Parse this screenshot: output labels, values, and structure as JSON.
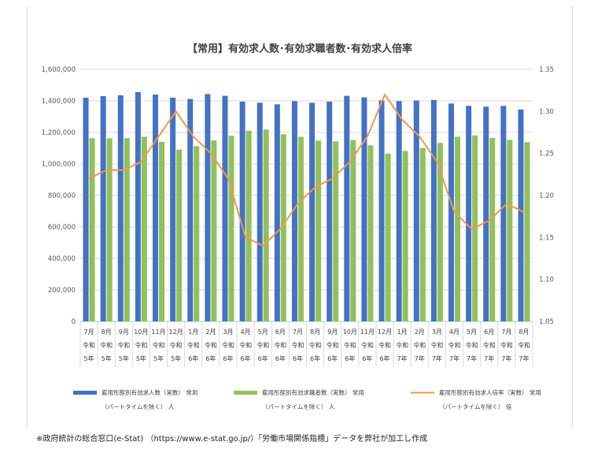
{
  "chart_data": {
    "type": "bar+line",
    "title": "【常用】有効求人数･有効求職者数･有効求人倍率",
    "categories": [
      [
        "7月",
        "令和",
        "5年"
      ],
      [
        "8月",
        "令和",
        "5年"
      ],
      [
        "9月",
        "令和",
        "5年"
      ],
      [
        "10月",
        "令和",
        "5年"
      ],
      [
        "11月",
        "令和",
        "5年"
      ],
      [
        "12月",
        "令和",
        "5年"
      ],
      [
        "1月",
        "令和",
        "6年"
      ],
      [
        "2月",
        "令和",
        "6年"
      ],
      [
        "3月",
        "令和",
        "6年"
      ],
      [
        "4月",
        "令和",
        "6年"
      ],
      [
        "5月",
        "令和",
        "6年"
      ],
      [
        "6月",
        "令和",
        "6年"
      ],
      [
        "7月",
        "令和",
        "6年"
      ],
      [
        "8月",
        "令和",
        "6年"
      ],
      [
        "9月",
        "令和",
        "6年"
      ],
      [
        "10月",
        "令和",
        "6年"
      ],
      [
        "11月",
        "令和",
        "6年"
      ],
      [
        "12月",
        "令和",
        "6年"
      ],
      [
        "1月",
        "令和",
        "7年"
      ],
      [
        "2月",
        "令和",
        "7年"
      ],
      [
        "3月",
        "令和",
        "7年"
      ],
      [
        "4月",
        "令和",
        "7年"
      ],
      [
        "5月",
        "令和",
        "7年"
      ],
      [
        "6月",
        "令和",
        "7年"
      ],
      [
        "7月",
        "令和",
        "7年"
      ],
      [
        "8月",
        "令和",
        "7年"
      ]
    ],
    "y_left": {
      "ylim": [
        0,
        1600000
      ],
      "ticks": [
        "0",
        "200,000",
        "400,000",
        "600,000",
        "800,000",
        "1,000,000",
        "1,200,000",
        "1,400,000",
        "1,600,000"
      ]
    },
    "y_right": {
      "ylim": [
        1.05,
        1.35
      ],
      "ticks": [
        "1.05",
        "1.10",
        "1.15",
        "1.20",
        "1.25",
        "1.30",
        "1.35"
      ]
    },
    "series": [
      {
        "name_lines": [
          "雇用形態別有効求人数（実数） 常用",
          "（パートタイムを除く） 人"
        ],
        "kind": "bar",
        "axis": "left",
        "color": "#4472c4",
        "values": [
          1420000,
          1430000,
          1435000,
          1455000,
          1440000,
          1420000,
          1412000,
          1443000,
          1432000,
          1395000,
          1388000,
          1378000,
          1398000,
          1388000,
          1395000,
          1432000,
          1422000,
          1403000,
          1398000,
          1402000,
          1405000,
          1383000,
          1368000,
          1363000,
          1368000,
          1345000
        ]
      },
      {
        "name_lines": [
          "雇用形態別有効求職者数（実数） 常用",
          "（パートタイムを除く） 人"
        ],
        "kind": "bar",
        "axis": "left",
        "color": "#92c05a",
        "values": [
          1163000,
          1163000,
          1163000,
          1172000,
          1140000,
          1090000,
          1113000,
          1148000,
          1178000,
          1210000,
          1218000,
          1188000,
          1172000,
          1148000,
          1143000,
          1152000,
          1118000,
          1065000,
          1082000,
          1100000,
          1133000,
          1172000,
          1180000,
          1165000,
          1152000,
          1138000
        ]
      },
      {
        "name_lines": [
          "雇用形態別有効求人倍率（実数） 常用",
          "（パートタイムを除く） 倍"
        ],
        "kind": "line",
        "axis": "right",
        "color": "#ed9b4a",
        "values": [
          1.22,
          1.23,
          1.23,
          1.24,
          1.27,
          1.3,
          1.27,
          1.25,
          1.22,
          1.15,
          1.14,
          1.16,
          1.19,
          1.21,
          1.22,
          1.24,
          1.27,
          1.32,
          1.29,
          1.27,
          1.24,
          1.18,
          1.16,
          1.17,
          1.19,
          1.18
        ]
      }
    ],
    "grid": true,
    "legend_position": "bottom"
  },
  "source_note": "※政府統計の総合窓口(e-Stat) （https://www.e-stat.go.jp/）「労働市場関係指標」データを弊社が加工し作成"
}
